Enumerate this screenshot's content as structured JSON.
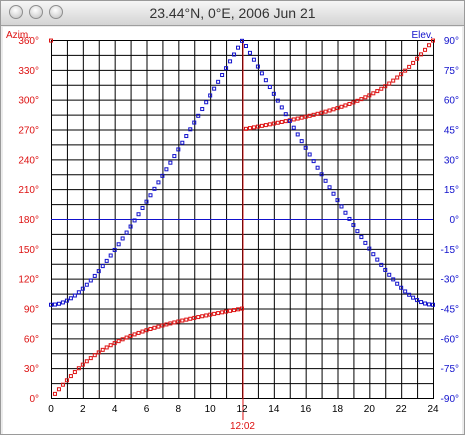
{
  "window": {
    "title": "23.44°N, 0°E, 2006 Jun 21",
    "buttons": [
      "close",
      "minimize",
      "zoom"
    ]
  },
  "colors": {
    "azimuth": "#dd1111",
    "elevation": "#1111cc",
    "grid": "#000000",
    "background": "#ffffff"
  },
  "chart_data": {
    "type": "scatter",
    "title": "23.44°N, 0°E, 2006 Jun 21",
    "xlabel": "",
    "x_ticks": [
      "0",
      "2",
      "4",
      "6",
      "8",
      "10",
      "12",
      "14",
      "16",
      "18",
      "20",
      "22",
      "24"
    ],
    "xlim": [
      0,
      24
    ],
    "left_axis": {
      "label": "Azim.",
      "ylim": [
        0,
        360
      ],
      "ticks": [
        "0°",
        "30°",
        "60°",
        "90°",
        "120°",
        "150°",
        "180°",
        "210°",
        "240°",
        "270°",
        "300°",
        "330°",
        "360°"
      ]
    },
    "right_axis": {
      "label": "Elev.",
      "ylim": [
        -90,
        90
      ],
      "ticks": [
        "-90°",
        "-75°",
        "-60°",
        "-45°",
        "-30°",
        "-15°",
        "0°",
        "15°",
        "30°",
        "45°",
        "60°",
        "75°",
        "90°"
      ]
    },
    "marker": {
      "x": 12.03,
      "label": "12:02"
    },
    "reference_line": {
      "axis": "right",
      "value": 0
    },
    "grid": true,
    "sample_step_hours": 0.25,
    "series": [
      {
        "name": "Azim.",
        "axis": "left",
        "formula": "solar azimuth",
        "latitude": 23.44,
        "declination": 23.44,
        "noon": 12.03
      },
      {
        "name": "Elev.",
        "axis": "right",
        "formula": "solar elevation",
        "latitude": 23.44,
        "declination": 23.44,
        "noon": 12.03
      }
    ]
  }
}
